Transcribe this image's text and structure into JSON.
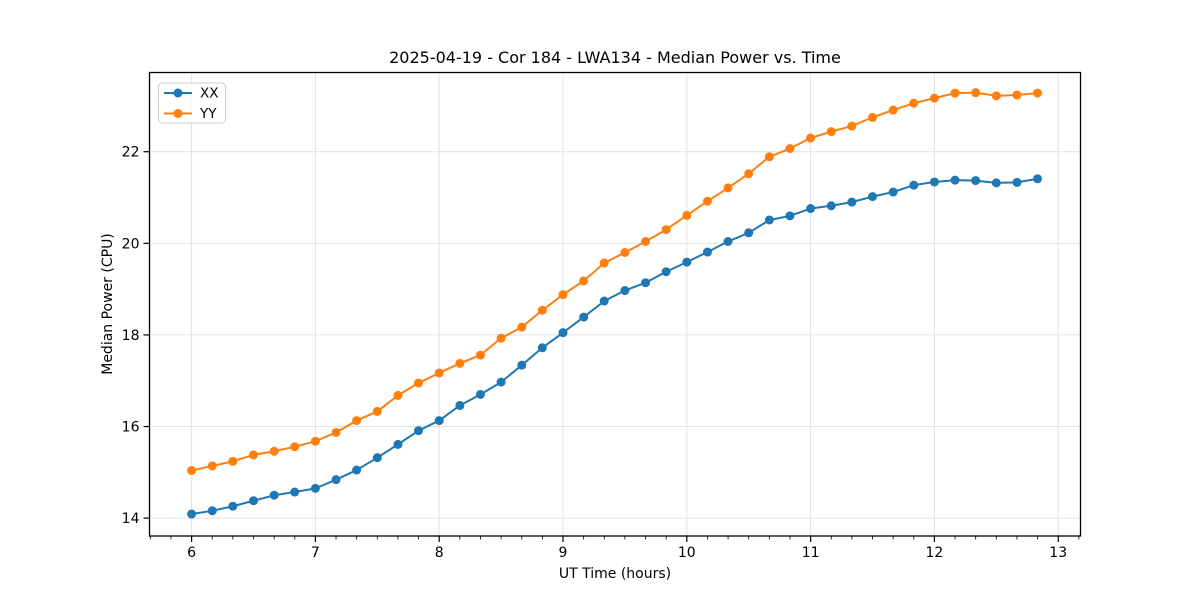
{
  "chart_data": {
    "type": "line",
    "title": "2025-04-19 - Cor 184 - LWA134 - Median Power vs. Time",
    "xlabel": "UT Time (hours)",
    "ylabel": "Median Power (CPU)",
    "xlim": [
      5.66,
      13.18
    ],
    "ylim": [
      13.61,
      23.73
    ],
    "xticks": [
      6,
      7,
      8,
      9,
      10,
      11,
      12,
      13
    ],
    "yticks": [
      14,
      16,
      18,
      20,
      22
    ],
    "x_minor_step": 0.166667,
    "grid": true,
    "grid_color": "#e2e2e2",
    "background": "#ffffff",
    "legend_position": "upper-left",
    "legend_border_color": "#cccccc",
    "x": [
      6,
      6.167,
      6.333,
      6.5,
      6.667,
      6.833,
      7,
      7.167,
      7.333,
      7.5,
      7.667,
      7.833,
      8,
      8.167,
      8.333,
      8.5,
      8.667,
      8.833,
      9,
      9.167,
      9.333,
      9.5,
      9.667,
      9.833,
      10,
      10.167,
      10.333,
      10.5,
      10.667,
      10.833,
      11,
      11.167,
      11.333,
      11.5,
      11.667,
      11.833,
      12,
      12.167,
      12.333,
      12.5,
      12.667,
      12.833
    ],
    "series": [
      {
        "name": "XX",
        "color": "#1f77b4",
        "values": [
          14.09,
          14.16,
          14.26,
          14.38,
          14.5,
          14.57,
          14.65,
          14.84,
          15.05,
          15.32,
          15.61,
          15.91,
          16.13,
          16.46,
          16.7,
          16.97,
          17.34,
          17.72,
          18.05,
          18.39,
          18.74,
          18.97,
          19.14,
          19.38,
          19.59,
          19.81,
          20.04,
          20.23,
          20.51,
          20.6,
          20.76,
          20.82,
          20.9,
          21.02,
          21.12,
          21.27,
          21.34,
          21.38,
          21.37,
          21.32,
          21.33,
          21.41
        ]
      },
      {
        "name": "YY",
        "color": "#ff7f0e",
        "values": [
          15.04,
          15.14,
          15.24,
          15.38,
          15.46,
          15.56,
          15.68,
          15.87,
          16.13,
          16.33,
          16.68,
          16.95,
          17.17,
          17.38,
          17.56,
          17.93,
          18.17,
          18.54,
          18.88,
          19.18,
          19.57,
          19.8,
          20.04,
          20.3,
          20.61,
          20.92,
          21.21,
          21.52,
          21.89,
          22.07,
          22.3,
          22.44,
          22.56,
          22.75,
          22.91,
          23.06,
          23.17,
          23.28,
          23.29,
          23.22,
          23.24,
          23.28
        ]
      }
    ]
  }
}
